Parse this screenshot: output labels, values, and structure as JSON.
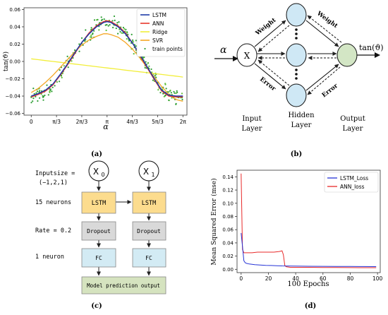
{
  "panel_labels": {
    "a": "(a)",
    "b": "(b)",
    "c": "(c)",
    "d": "(d)"
  },
  "chart_data": [
    {
      "type": "line",
      "id": "a",
      "title": "",
      "xlabel": "α",
      "ylabel": "tan(ϑ)",
      "xlim": [
        -0.3,
        6.45
      ],
      "ylim": [
        -0.062,
        0.062
      ],
      "xticks": [
        0,
        1.0472,
        2.0944,
        3.1416,
        4.1888,
        5.236,
        6.2832
      ],
      "xtick_labels": [
        "0",
        "π/3",
        "2π/3",
        "π",
        "4π/3",
        "5π/3",
        "2π"
      ],
      "yticks": [
        -0.06,
        -0.04,
        -0.02,
        0.0,
        0.02,
        0.04,
        0.06
      ],
      "ytick_labels": [
        "−0.06",
        "−0.04",
        "−0.02",
        "0.00",
        "0.02",
        "0.04",
        "0.06"
      ],
      "legend": {
        "position": "top-right",
        "entries": [
          "LSTM",
          "ANN",
          "Ridge",
          "SVR",
          "train points"
        ]
      },
      "colors": {
        "LSTM": "#1f3ca8",
        "ANN": "#e8372a",
        "Ridge": "#f2ee3a",
        "SVR": "#f5a623",
        "train": "#2e9e34"
      },
      "x": [
        0,
        0.3,
        0.6,
        0.9,
        1.2,
        1.5,
        1.8,
        2.1,
        2.4,
        2.7,
        3.0,
        3.1416,
        3.3,
        3.6,
        3.9,
        4.2,
        4.5,
        4.8,
        5.1,
        5.4,
        5.7,
        6.0,
        6.2832
      ],
      "series": [
        {
          "name": "LSTM",
          "values": [
            -0.04,
            -0.037,
            -0.033,
            -0.026,
            -0.015,
            -0.003,
            0.01,
            0.022,
            0.032,
            0.04,
            0.045,
            0.046,
            0.045,
            0.04,
            0.032,
            0.021,
            0.008,
            -0.006,
            -0.02,
            -0.033,
            -0.039,
            -0.04,
            -0.04
          ]
        },
        {
          "name": "ANN",
          "values": [
            -0.041,
            -0.038,
            -0.034,
            -0.027,
            -0.016,
            -0.004,
            0.009,
            0.022,
            0.033,
            0.041,
            0.046,
            0.047,
            0.046,
            0.041,
            0.033,
            0.021,
            0.007,
            -0.007,
            -0.021,
            -0.034,
            -0.04,
            -0.041,
            -0.041
          ]
        },
        {
          "name": "Ridge",
          "values": [
            0.003,
            0.002,
            0.001,
            0.0,
            -0.001,
            -0.002,
            -0.003,
            -0.004,
            -0.005,
            -0.006,
            -0.007,
            -0.0075,
            -0.008,
            -0.009,
            -0.01,
            -0.011,
            -0.012,
            -0.013,
            -0.014,
            -0.015,
            -0.016,
            -0.017,
            -0.018
          ]
        },
        {
          "name": "SVR",
          "values": [
            -0.036,
            -0.031,
            -0.024,
            -0.016,
            -0.007,
            0.002,
            0.011,
            0.019,
            0.025,
            0.029,
            0.032,
            0.032,
            0.031,
            0.028,
            0.022,
            0.014,
            0.004,
            -0.007,
            -0.018,
            -0.029,
            -0.038,
            -0.044,
            -0.046
          ]
        }
      ],
      "train_points": {
        "count": 260,
        "noise": 0.004
      }
    },
    {
      "type": "line",
      "id": "d",
      "title": "",
      "xlabel": "100 Epochs",
      "ylabel": "Mean Squared Error (mse)",
      "xlim": [
        -3,
        102
      ],
      "ylim": [
        -0.005,
        0.15
      ],
      "xticks": [
        0,
        20,
        40,
        60,
        80,
        100
      ],
      "yticks": [
        0.0,
        0.02,
        0.04,
        0.06,
        0.08,
        0.1,
        0.12,
        0.14
      ],
      "ytick_labels": [
        "0.00",
        "0.02",
        "0.04",
        "0.06",
        "0.08",
        "0.10",
        "0.12",
        "0.14"
      ],
      "legend": {
        "position": "top-right",
        "entries": [
          "LSTM_Loss",
          "ANN_loss"
        ]
      },
      "colors": {
        "LSTM_Loss": "#2533d6",
        "ANN_loss": "#e82a2a"
      },
      "series": [
        {
          "name": "LSTM_Loss",
          "x": [
            0,
            1,
            2,
            3,
            4,
            6,
            8,
            10,
            14,
            18,
            22,
            26,
            30,
            34,
            40,
            50,
            60,
            70,
            80,
            90,
            99
          ],
          "values": [
            0.055,
            0.035,
            0.013,
            0.01,
            0.009,
            0.008,
            0.0075,
            0.007,
            0.0065,
            0.006,
            0.0058,
            0.0055,
            0.0052,
            0.005,
            0.0048,
            0.0046,
            0.0045,
            0.0044,
            0.0043,
            0.0042,
            0.0041
          ]
        },
        {
          "name": "ANN_loss",
          "x": [
            0,
            1,
            2,
            3,
            5,
            8,
            12,
            16,
            20,
            24,
            28,
            30,
            31,
            32,
            33,
            36,
            40,
            50,
            60,
            70,
            80,
            90,
            99
          ],
          "values": [
            0.145,
            0.03,
            0.025,
            0.025,
            0.025,
            0.025,
            0.026,
            0.026,
            0.026,
            0.026,
            0.027,
            0.028,
            0.022,
            0.006,
            0.004,
            0.003,
            0.003,
            0.003,
            0.0028,
            0.0027,
            0.0026,
            0.0025,
            0.0025
          ]
        }
      ]
    }
  ],
  "diagram_b": {
    "input_symbol": "α",
    "input_node": "X",
    "output_symbol": "tan(ϑ)",
    "weight_left": "Weight",
    "weight_right": "Weight",
    "error_left": "Error",
    "error_right": "Error",
    "input_layer": [
      "Input",
      "Layer"
    ],
    "hidden_layer": [
      "Hidden",
      "Layer"
    ],
    "output_layer": [
      "Output",
      "Layer"
    ]
  },
  "diagram_c": {
    "x0": "X",
    "x0_sub": "0",
    "x1": "X",
    "x1_sub": "1",
    "inputsize_label": "Inputsize =",
    "inputsize_value": "(−1,2,1)",
    "neurons_label": "15 neurons",
    "rate_label": "Rate = 0.2",
    "neuron_label": "1 neuron",
    "lstm": "LSTM",
    "dropout": "Dropout",
    "fc": "FC",
    "output": "Model prediction output"
  }
}
